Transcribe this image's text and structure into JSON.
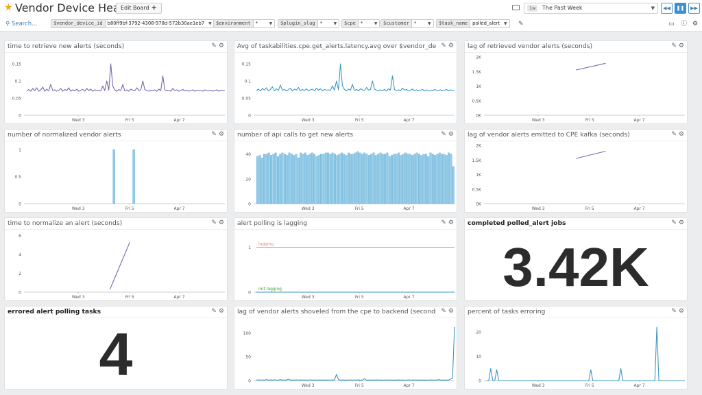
{
  "header": {
    "title": "Vendor Device Health",
    "edit_board_label": "Edit Board",
    "timeframe_badge": "1w",
    "timeframe_label": "The Past Week"
  },
  "template_vars": {
    "search_label": "Search...",
    "items": [
      {
        "name": "$vendor_device_id",
        "value": "b80ff9bf-3792-4308-978d-572b30ae1eb7"
      },
      {
        "name": "$environment",
        "value": "*"
      },
      {
        "name": "$plugin_slug",
        "value": "*"
      },
      {
        "name": "$cpe",
        "value": "*"
      },
      {
        "name": "$customer",
        "value": "*"
      },
      {
        "name": "$task_name",
        "value": "polled_alert"
      }
    ]
  },
  "icons": {
    "star": "star-icon",
    "keyboard": "keyboard-icon",
    "search": "search-icon",
    "pencil": "pencil-icon",
    "gear": "gear-icon",
    "tv": "tv-mode-icon",
    "info": "info-icon"
  },
  "colors": {
    "purple": "#7b63b5",
    "blue": "#3a97c6",
    "bar_fill": "#96cbe6",
    "bar_stroke": "#4ea8d6",
    "lagging_line": "#f08080",
    "not_lagging_line": "#3ba03b",
    "accent": "#3a8fd0"
  },
  "widgets": [
    {
      "title": "time to retrieve new alerts (seconds)",
      "chart_data": {
        "type": "line",
        "color": "purple",
        "x_ticks": [
          "Wed 3",
          "Fri 5",
          "Apr 7"
        ],
        "y_ticks": [
          "0",
          "0.05",
          "0.1",
          "0.15"
        ],
        "ylim": [
          0,
          0.17
        ],
        "series": [
          {
            "values": [
              0.07,
              0.075,
              0.07,
              0.078,
              0.072,
              0.08,
              0.07,
              0.074,
              0.082,
              0.07,
              0.076,
              0.071,
              0.09,
              0.072,
              0.074,
              0.07,
              0.073,
              0.078,
              0.07,
              0.075,
              0.072,
              0.08,
              0.07,
              0.074,
              0.071,
              0.076,
              0.07,
              0.073,
              0.075,
              0.07,
              0.078,
              0.072,
              0.076,
              0.07,
              0.074,
              0.072,
              0.073,
              0.071,
              0.085,
              0.072,
              0.1,
              0.073,
              0.15,
              0.085,
              0.074,
              0.07,
              0.075,
              0.072,
              0.09,
              0.071,
              0.074,
              0.07,
              0.076,
              0.073,
              0.071,
              0.08,
              0.072,
              0.074,
              0.1,
              0.075,
              0.072,
              0.07,
              0.073,
              0.071,
              0.074,
              0.07,
              0.076,
              0.072,
              0.115,
              0.074,
              0.071,
              0.073,
              0.07,
              0.078,
              0.072,
              0.074,
              0.07,
              0.072,
              0.075,
              0.071,
              0.073,
              0.07,
              0.072,
              0.074,
              0.07,
              0.073,
              0.071,
              0.072,
              0.07,
              0.074,
              0.072,
              0.071,
              0.073,
              0.07,
              0.072,
              0.074,
              0.07,
              0.073,
              0.071,
              0.072
            ]
          }
        ]
      }
    },
    {
      "title": "Avg of taskabilities.cpe.get_alerts.latency.avg over $vendor_device_id",
      "chart_data": {
        "type": "line",
        "color": "blue",
        "x_ticks": [
          "Wed 3",
          "Fri 5",
          "Apr 7"
        ],
        "y_ticks": [
          "0",
          "0.05",
          "0.1",
          "0.15"
        ],
        "ylim": [
          0,
          0.17
        ],
        "series": [
          {
            "values": [
              0.072,
              0.076,
              0.071,
              0.078,
              0.073,
              0.08,
              0.071,
              0.075,
              0.083,
              0.071,
              0.077,
              0.072,
              0.088,
              0.073,
              0.075,
              0.071,
              0.074,
              0.079,
              0.071,
              0.076,
              0.073,
              0.081,
              0.071,
              0.075,
              0.072,
              0.077,
              0.071,
              0.074,
              0.076,
              0.071,
              0.079,
              0.073,
              0.077,
              0.071,
              0.075,
              0.073,
              0.074,
              0.072,
              0.086,
              0.073,
              0.1,
              0.074,
              0.15,
              0.086,
              0.075,
              0.071,
              0.076,
              0.073,
              0.09,
              0.072,
              0.075,
              0.071,
              0.077,
              0.074,
              0.072,
              0.081,
              0.073,
              0.075,
              0.1,
              0.076,
              0.073,
              0.071,
              0.074,
              0.072,
              0.075,
              0.071,
              0.077,
              0.073,
              0.115,
              0.075,
              0.072,
              0.074,
              0.071,
              0.079,
              0.073,
              0.075,
              0.071,
              0.073,
              0.076,
              0.072,
              0.074,
              0.071,
              0.073,
              0.075,
              0.071,
              0.074,
              0.072,
              0.073,
              0.071,
              0.075,
              0.073,
              0.072,
              0.074,
              0.071,
              0.073,
              0.075,
              0.071,
              0.074,
              0.072,
              0.073
            ]
          }
        ]
      }
    },
    {
      "title": "lag of retrieved vendor alerts (seconds)",
      "chart_data": {
        "type": "line",
        "color": "purple",
        "x_ticks": [
          "Wed 3",
          "Fri 5",
          "Apr 7"
        ],
        "y_ticks": [
          "0K",
          "0.5K",
          "1K",
          "1.5K",
          "2K"
        ],
        "ylim": [
          0,
          2000
        ],
        "series": [
          {
            "x_fraction": [
              0.45,
              0.6
            ],
            "values": [
              1550,
              1780
            ]
          }
        ]
      }
    },
    {
      "title": "number of normalized vendor alerts",
      "chart_data": {
        "type": "bar",
        "color": "bar",
        "x_ticks": [
          "Wed 3",
          "Fri 5",
          "Apr 7"
        ],
        "y_ticks": [
          "0",
          "0.5",
          "1"
        ],
        "ylim": [
          0,
          1.08
        ],
        "bars": [
          {
            "x_fraction": 0.44,
            "value": 1
          },
          {
            "x_fraction": 0.54,
            "value": 1
          }
        ]
      }
    },
    {
      "title": "number of api calls to get new alerts",
      "chart_data": {
        "type": "bar",
        "color": "bar",
        "x_ticks": [
          "Wed 3",
          "Fri 5",
          "Apr 7"
        ],
        "y_ticks": [
          "0",
          "20",
          "40"
        ],
        "ylim": [
          0,
          47
        ],
        "values": [
          38,
          39,
          37,
          40,
          40,
          41,
          39,
          40,
          41,
          38,
          40,
          41,
          40,
          39,
          41,
          40,
          39,
          40,
          37,
          41,
          40,
          41,
          39,
          40,
          41,
          40,
          38,
          39,
          40,
          40,
          41,
          41,
          40,
          41,
          40,
          39,
          40,
          41,
          40,
          39,
          41,
          40,
          40,
          41,
          42,
          41,
          40,
          41,
          40,
          39,
          40,
          41,
          39,
          40,
          41,
          40,
          40,
          41,
          38,
          39,
          40,
          40,
          41,
          39,
          40,
          41,
          40,
          40,
          39,
          40,
          41,
          40,
          39,
          40,
          40,
          38,
          41,
          40,
          39,
          40,
          41,
          40,
          40,
          39,
          41,
          40,
          30
        ]
      }
    },
    {
      "title": "lag of vendor alerts emitted to CPE kafka (seconds)",
      "chart_data": {
        "type": "line",
        "color": "purple",
        "x_ticks": [
          "Wed 3",
          "Fri 5",
          "Apr 7"
        ],
        "y_ticks": [
          "0K",
          "0.5K",
          "1K",
          "1.5K",
          "2K"
        ],
        "ylim": [
          0,
          2000
        ],
        "series": [
          {
            "x_fraction": [
              0.45,
              0.6
            ],
            "values": [
              1550,
              1800
            ]
          }
        ]
      }
    },
    {
      "title": "time to normalize an alert (seconds)",
      "chart_data": {
        "type": "line",
        "color": "purple",
        "x_ticks": [
          "Wed 3",
          "Fri 5",
          "Apr 7"
        ],
        "y_ticks": [
          "0",
          "2",
          "4",
          "6"
        ],
        "ylim": [
          0,
          6.2
        ],
        "series": [
          {
            "x_fraction": [
              0.42,
              0.52
            ],
            "values": [
              0.3,
              5.3
            ]
          }
        ]
      }
    },
    {
      "title": "alert polling is lagging",
      "chart_data": {
        "type": "line",
        "color": "blue",
        "x_ticks": [
          "Wed 3",
          "Fri 5",
          "Apr 7"
        ],
        "y_ticks": [
          "0",
          "1"
        ],
        "ylim": [
          0,
          1.3
        ],
        "markers": [
          {
            "label": "lagging",
            "value": 1,
            "color": "lagging_line"
          },
          {
            "label": "not lagging",
            "value": 0,
            "color": "not_lagging_line"
          }
        ],
        "series": [
          {
            "x_fraction": [
              0,
              1
            ],
            "values": [
              0,
              0
            ]
          }
        ]
      }
    },
    {
      "title": "completed polled_alert jobs",
      "value": "3.42K"
    },
    {
      "title": "errored alert polling tasks",
      "value": "4"
    },
    {
      "title": "lag of vendor alerts shoveled from the cpe to backend (seconds)",
      "chart_data": {
        "type": "line",
        "color": "blue",
        "x_ticks": [
          "Wed 3",
          "Fri 5",
          "Apr 7"
        ],
        "y_ticks": [
          "0",
          "50",
          "100"
        ],
        "ylim": [
          0,
          122
        ],
        "series": [
          {
            "values": [
              1,
              1.5,
              1,
              1.2,
              1,
              2,
              1,
              1.3,
              1,
              1.5,
              1.2,
              1,
              1.8,
              1,
              1.2,
              1,
              3,
              1,
              1.2,
              1,
              1.5,
              1,
              1.3,
              1,
              1.2,
              1,
              1,
              1.5,
              1,
              1.2,
              1,
              1.1,
              1,
              1.3,
              1,
              1.2,
              1,
              1,
              1.4,
              1,
              13,
              2,
              1,
              1.2,
              1,
              1.1,
              1,
              1.5,
              1,
              1.2,
              1,
              1.3,
              1,
              1,
              4,
              1,
              1.2,
              1,
              1.1,
              1,
              1.3,
              1,
              1.2,
              1,
              1,
              1.5,
              1,
              1.2,
              1,
              1.1,
              1,
              1.3,
              1,
              1.2,
              1,
              1,
              1.4,
              1,
              1.2,
              1,
              1.1,
              1,
              1.3,
              1,
              1.2,
              1,
              1,
              1.5,
              1,
              1.2,
              1,
              2,
              1,
              1.3,
              1,
              1.2,
              1,
              3,
              5,
              112
            ]
          }
        ]
      }
    },
    {
      "title": "percent of tasks erroring",
      "chart_data": {
        "type": "line",
        "color": "blue",
        "x_ticks": [
          "Wed 3",
          "Fri 5",
          "Apr 7"
        ],
        "y_ticks": [
          "0",
          "10",
          "20"
        ],
        "ylim": [
          0,
          24
        ],
        "series": [
          {
            "values": [
              0,
              0,
              5,
              0,
              0,
              4.5,
              0,
              0,
              0,
              0,
              0,
              0,
              0,
              0,
              0,
              0,
              0,
              0,
              0,
              0,
              0,
              0,
              0,
              0,
              0,
              0,
              0,
              0,
              0,
              0,
              0,
              0,
              0,
              0,
              0,
              0,
              0,
              0,
              0,
              0,
              0,
              0,
              0,
              0,
              0,
              0,
              0,
              0,
              0,
              0,
              0,
              0,
              4.5,
              0,
              0,
              0,
              0,
              0,
              0,
              0,
              0,
              0,
              0,
              0,
              0,
              0,
              0,
              5,
              0,
              0,
              0,
              0,
              0,
              0,
              0,
              0,
              0,
              0,
              0,
              0,
              0,
              0,
              0,
              0,
              0,
              22,
              0,
              0,
              0,
              0,
              0,
              0,
              0,
              0,
              0,
              0,
              0,
              0,
              0,
              0
            ]
          }
        ]
      }
    }
  ]
}
